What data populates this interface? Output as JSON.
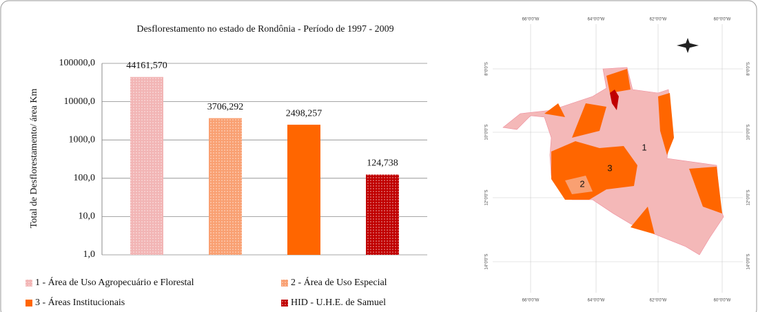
{
  "chart_data": {
    "type": "bar",
    "title": "Desflorestamento  no estado de Rondônia - Período de 1997 - 2009",
    "y_label": "Total de Desflorestamento/ área Km",
    "log": true,
    "ylim": [
      1,
      100000
    ],
    "yticks": [
      {
        "value": 1,
        "label": "1,0"
      },
      {
        "value": 10,
        "label": "10,0"
      },
      {
        "value": 100,
        "label": "100,0"
      },
      {
        "value": 1000,
        "label": "1000,0"
      },
      {
        "value": 10000,
        "label": "10000,0"
      },
      {
        "value": 100000,
        "label": "100000,0"
      }
    ],
    "grid": true,
    "series": [
      {
        "name": "1 - Área de Uso Agropecuário e Florestal",
        "color": "#f2b5b5",
        "pattern": "dots",
        "values": [
          44161.57
        ],
        "value_labels": [
          "44161,570"
        ]
      },
      {
        "name": "2 - Área de Uso Especial",
        "color": "#f9a072",
        "pattern": "dots",
        "values": [
          3706.292
        ],
        "value_labels": [
          "3706,292"
        ]
      },
      {
        "name": "3 - Áreas Institucionais",
        "color": "#ff6600",
        "values": [
          2498.257
        ],
        "value_labels": [
          "2498,257"
        ]
      },
      {
        "name": "HID - U.H.E. de Samuel",
        "color": "#c00000",
        "pattern": "dots",
        "values": [
          124.738
        ],
        "value_labels": [
          "124,738"
        ]
      }
    ]
  },
  "map": {
    "lon_labels": [
      "66°0'0\"W",
      "64°0'0\"W",
      "62°0'0\"W",
      "60°0'0\"W"
    ],
    "lat_labels": [
      "8°0'0\"S",
      "10°0'0\"S",
      "12°0'0\"S",
      "14°0'0\"S"
    ],
    "region_labels": [
      "1",
      "2",
      "3"
    ]
  }
}
